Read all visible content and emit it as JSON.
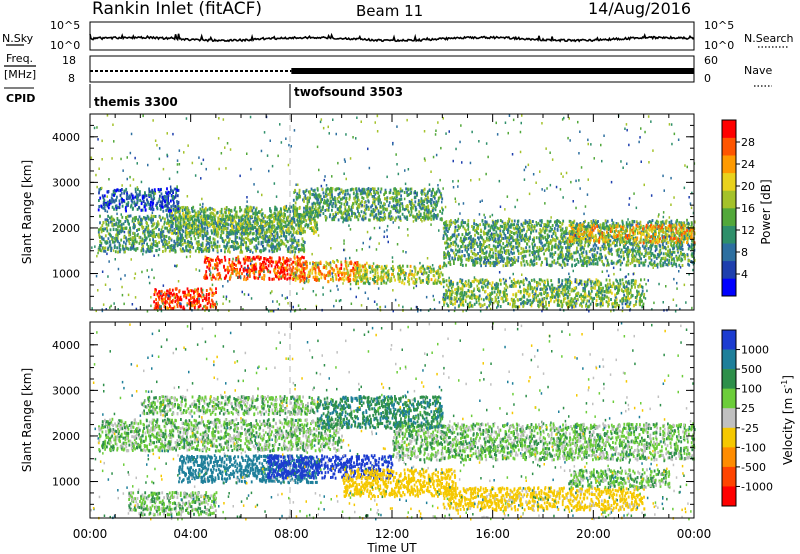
{
  "header": {
    "site": "Rankin Inlet (fitACF)",
    "beam": "Beam 11",
    "date": "14/Aug/2016"
  },
  "left_labels": {
    "nsky": "N.Sky",
    "freq": "Freq.",
    "freq_unit": "[MHz]",
    "cpid": "CPID"
  },
  "right_labels": {
    "nsearch": "N.Search",
    "nave": "Nave"
  },
  "noise_axis": {
    "left_top": "10^5",
    "left_bottom": "10^0",
    "right_top": "10^5",
    "right_bottom": "10^0"
  },
  "freq_axis": {
    "left_top": "18",
    "left_bottom": "8",
    "right_top": "60",
    "right_bottom": "0"
  },
  "cpid_segments": [
    {
      "name": "themis 3300",
      "start_hour": 0
    },
    {
      "name": "twofsound 3503",
      "start_hour": 8
    }
  ],
  "power_colorbar": {
    "label": "Power [dB]",
    "ticks": [
      "4",
      "8",
      "12",
      "16",
      "20",
      "24",
      "28"
    ],
    "colors": [
      "#0000ff",
      "#1e3fae",
      "#2d6fa0",
      "#2e8f6a",
      "#52a83a",
      "#a4c22a",
      "#e9d21c",
      "#ff9a00",
      "#ff5500",
      "#ff0000"
    ]
  },
  "velocity_colorbar": {
    "label": "Velocity [m s^-1]",
    "ticks": [
      "1000",
      "500",
      "100",
      "25",
      "-25",
      "-100",
      "-500",
      "-1000"
    ],
    "colors": [
      "#1c3cd0",
      "#1e7f9a",
      "#2e8f4a",
      "#6ccd3a",
      "#c0c0c0",
      "#f5c800",
      "#ff8c00",
      "#ff4400",
      "#ff0000"
    ]
  },
  "x_axis": {
    "label": "Time UT",
    "ticks": [
      "00:00",
      "04:00",
      "08:00",
      "12:00",
      "16:00",
      "20:00",
      "00:00"
    ]
  },
  "chart_data": [
    {
      "type": "heatmap",
      "name": "power",
      "ylabel": "Slant Range [km]",
      "xlim": [
        0,
        24
      ],
      "ylim": [
        200,
        4500
      ],
      "yticks": [
        "1000",
        "2000",
        "3000",
        "4000"
      ],
      "ytick_values": [
        1000,
        2000,
        3000,
        4000
      ],
      "regions": [
        {
          "t": [
            2.5,
            5.0
          ],
          "r": [
            250,
            700
          ],
          "v": 28
        },
        {
          "t": [
            4.5,
            8.5
          ],
          "r": [
            900,
            1400
          ],
          "v": 27
        },
        {
          "t": [
            8.0,
            11.0
          ],
          "r": [
            850,
            1300
          ],
          "v": 22
        },
        {
          "t": [
            10.5,
            14.0
          ],
          "r": [
            800,
            1200
          ],
          "v": 16
        },
        {
          "t": [
            0.3,
            8.5
          ],
          "r": [
            1500,
            2300
          ],
          "v": 12
        },
        {
          "t": [
            3.0,
            9.0
          ],
          "r": [
            1900,
            2500
          ],
          "v": 14
        },
        {
          "t": [
            0.3,
            3.5
          ],
          "r": [
            2400,
            2900
          ],
          "v": 6
        },
        {
          "t": [
            8.0,
            14.0
          ],
          "r": [
            2200,
            2900
          ],
          "v": 12
        },
        {
          "t": [
            14.0,
            24.0
          ],
          "r": [
            1200,
            2200
          ],
          "v": 12
        },
        {
          "t": [
            14.0,
            22.0
          ],
          "r": [
            300,
            900
          ],
          "v": 14
        },
        {
          "t": [
            19.0,
            24.0
          ],
          "r": [
            1700,
            2100
          ],
          "v": 20
        }
      ]
    },
    {
      "type": "heatmap",
      "name": "velocity",
      "ylabel": "Slant Range [km]",
      "xlim": [
        0,
        24
      ],
      "ylim": [
        200,
        4500
      ],
      "yticks": [
        "1000",
        "2000",
        "3000",
        "4000"
      ],
      "ytick_values": [
        1000,
        2000,
        3000,
        4000
      ],
      "regions": [
        {
          "t": [
            0.3,
            10.0
          ],
          "r": [
            1700,
            2400
          ],
          "v": 0
        },
        {
          "t": [
            2.0,
            9.0
          ],
          "r": [
            2500,
            2900
          ],
          "v": 0
        },
        {
          "t": [
            1.5,
            5.0
          ],
          "r": [
            300,
            800
          ],
          "v": 0
        },
        {
          "t": [
            3.5,
            9.0
          ],
          "r": [
            1000,
            1600
          ],
          "v": 200
        },
        {
          "t": [
            7.0,
            12.0
          ],
          "r": [
            1100,
            1600
          ],
          "v": 800
        },
        {
          "t": [
            10.0,
            14.5
          ],
          "r": [
            700,
            1300
          ],
          "v": -200
        },
        {
          "t": [
            12.0,
            24.0
          ],
          "r": [
            1500,
            2300
          ],
          "v": 0
        },
        {
          "t": [
            9.0,
            14.0
          ],
          "r": [
            2200,
            2900
          ],
          "v": 80
        },
        {
          "t": [
            14.0,
            22.0
          ],
          "r": [
            400,
            900
          ],
          "v": -150
        },
        {
          "t": [
            19.0,
            23.0
          ],
          "r": [
            900,
            1300
          ],
          "v": 0
        }
      ]
    }
  ]
}
